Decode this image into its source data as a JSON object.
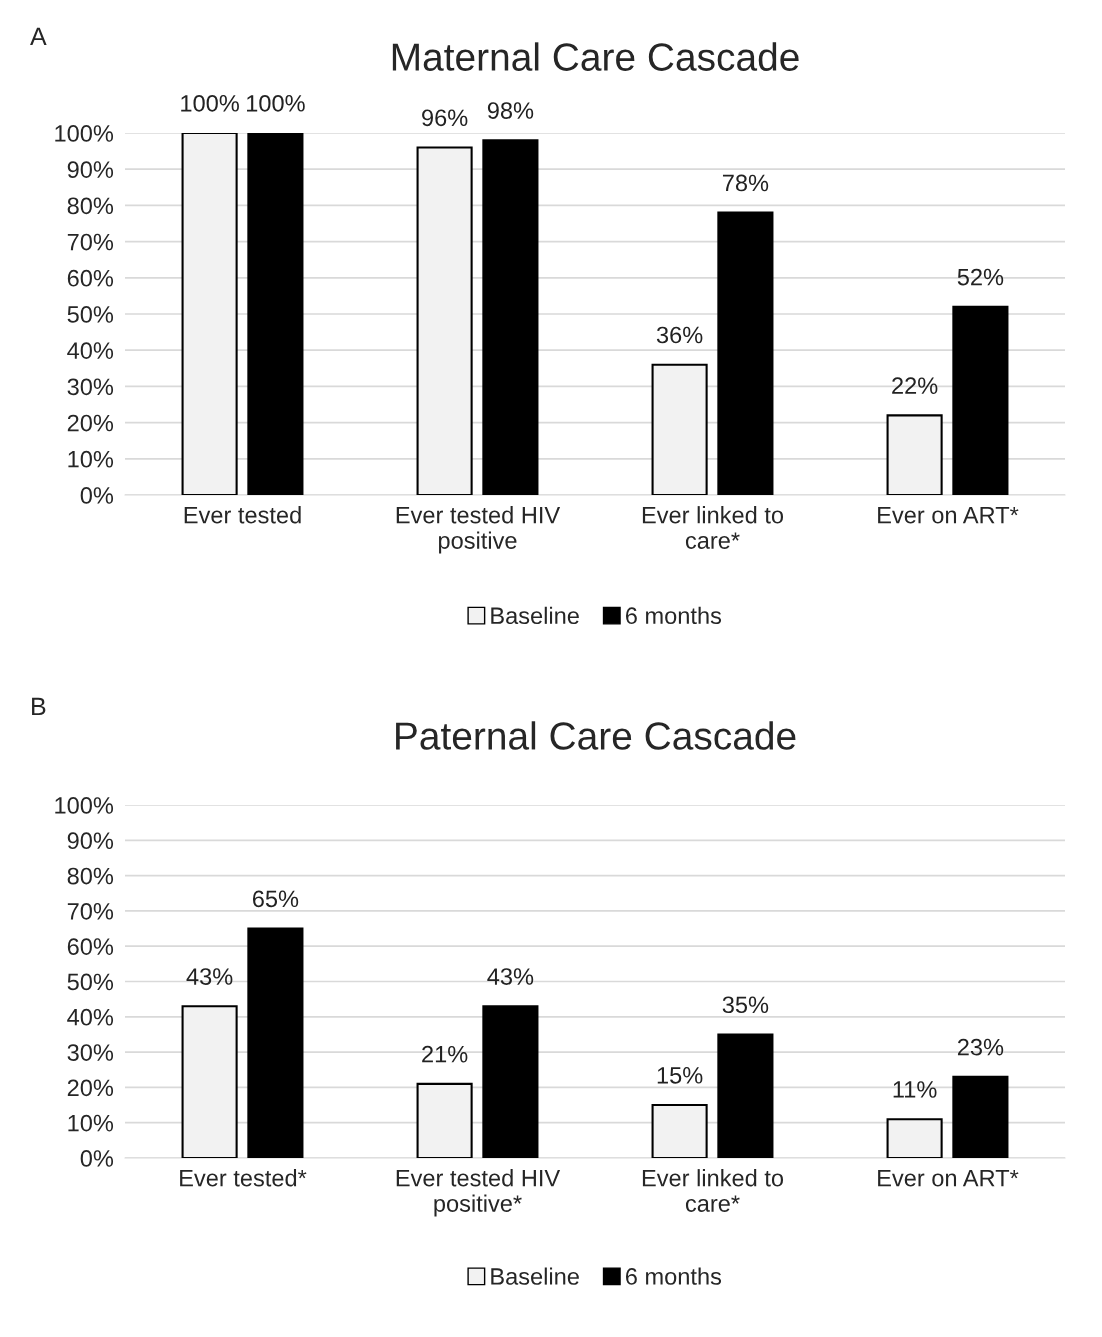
{
  "chart_data": [
    {
      "type": "bar",
      "title": "Maternal Care Cascade",
      "annotations": [
        "A"
      ],
      "categories": [
        "Ever tested",
        "Ever tested HIV positive",
        "Ever linked to care*",
        "Ever on ART*"
      ],
      "series": [
        {
          "name": "Baseline",
          "color": "#f2f2f2",
          "values": [
            100,
            96,
            36,
            22
          ],
          "value_labels": [
            "100%",
            "96%",
            "36%",
            "22%"
          ]
        },
        {
          "name": "6 months",
          "color": "#000000",
          "values": [
            100,
            98,
            78,
            52
          ],
          "value_labels": [
            "100%",
            "98%",
            "78%",
            "52%"
          ]
        }
      ],
      "ylim": [
        0,
        100
      ],
      "yticks": [
        {
          "value": 0,
          "label": "0%"
        },
        {
          "value": 10,
          "label": "10%"
        },
        {
          "value": 20,
          "label": "20%"
        },
        {
          "value": 30,
          "label": "30%"
        },
        {
          "value": 40,
          "label": "40%"
        },
        {
          "value": 50,
          "label": "50%"
        },
        {
          "value": 60,
          "label": "60%"
        },
        {
          "value": 70,
          "label": "70%"
        },
        {
          "value": 80,
          "label": "80%"
        },
        {
          "value": 90,
          "label": "90%"
        },
        {
          "value": 100,
          "label": "100%"
        }
      ],
      "grid": "y",
      "legend": "bottom"
    },
    {
      "type": "bar",
      "title": "Paternal Care Cascade",
      "annotations": [
        "B"
      ],
      "categories": [
        "Ever tested*",
        "Ever tested HIV positive*",
        "Ever linked to care*",
        "Ever on ART*"
      ],
      "series": [
        {
          "name": "Baseline",
          "color": "#f2f2f2",
          "values": [
            43,
            21,
            15,
            11
          ],
          "value_labels": [
            "43%",
            "21%",
            "15%",
            "11%"
          ]
        },
        {
          "name": "6 months",
          "color": "#000000",
          "values": [
            65,
            43,
            35,
            23
          ],
          "value_labels": [
            "65%",
            "43%",
            "35%",
            "23%"
          ]
        }
      ],
      "ylim": [
        0,
        100
      ],
      "yticks": [
        {
          "value": 0,
          "label": "0%"
        },
        {
          "value": 10,
          "label": "10%"
        },
        {
          "value": 20,
          "label": "20%"
        },
        {
          "value": 30,
          "label": "30%"
        },
        {
          "value": 40,
          "label": "40%"
        },
        {
          "value": 50,
          "label": "50%"
        },
        {
          "value": 60,
          "label": "60%"
        },
        {
          "value": 70,
          "label": "70%"
        },
        {
          "value": 80,
          "label": "80%"
        },
        {
          "value": 90,
          "label": "90%"
        },
        {
          "value": 100,
          "label": "100%"
        }
      ],
      "grid": "y",
      "legend": "bottom"
    }
  ]
}
